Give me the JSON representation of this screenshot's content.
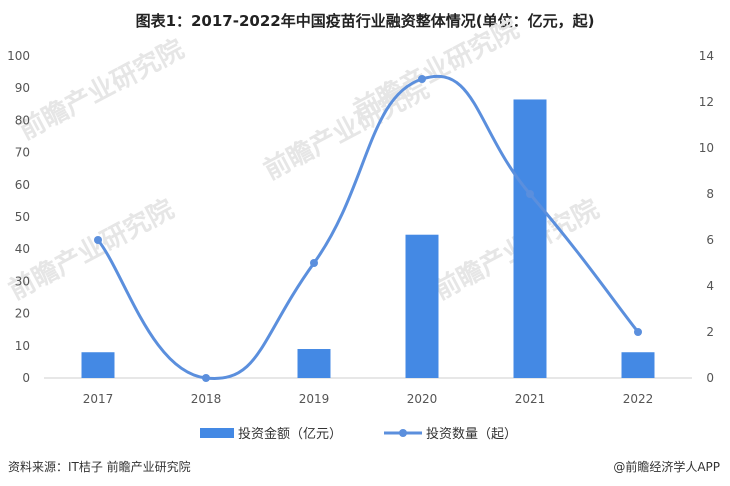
{
  "chart_data": {
    "type": "bar+line",
    "title": "图表1：2017-2022年中国疫苗行业融资整体情况(单位：亿元，起)",
    "categories": [
      "2017",
      "2018",
      "2019",
      "2020",
      "2021",
      "2022"
    ],
    "series": [
      {
        "name": "投资金额（亿元）",
        "type": "bar",
        "axis": "left",
        "values": [
          8,
          0,
          9,
          44.5,
          86.5,
          8
        ]
      },
      {
        "name": "投资数量（起）",
        "type": "line",
        "axis": "right",
        "values": [
          6,
          0,
          5,
          13,
          8,
          2
        ]
      }
    ],
    "y_left": {
      "min": 0,
      "max": 100,
      "ticks": [
        0,
        10,
        20,
        30,
        40,
        50,
        60,
        70,
        80,
        90,
        100
      ]
    },
    "y_right": {
      "min": 0,
      "max": 14,
      "ticks": [
        0,
        2,
        4,
        6,
        8,
        10,
        12,
        14
      ]
    },
    "grid": false,
    "legend_position": "bottom",
    "colors": {
      "bar": "#4489e4",
      "line": "#5b8fdd",
      "axis": "#cfcfcf",
      "text": "#555555"
    }
  },
  "footer": {
    "source": "资料来源：IT桔子 前瞻产业研究院",
    "brand": "@前瞻经济学人APP"
  },
  "watermark": "前瞻产业研究院"
}
